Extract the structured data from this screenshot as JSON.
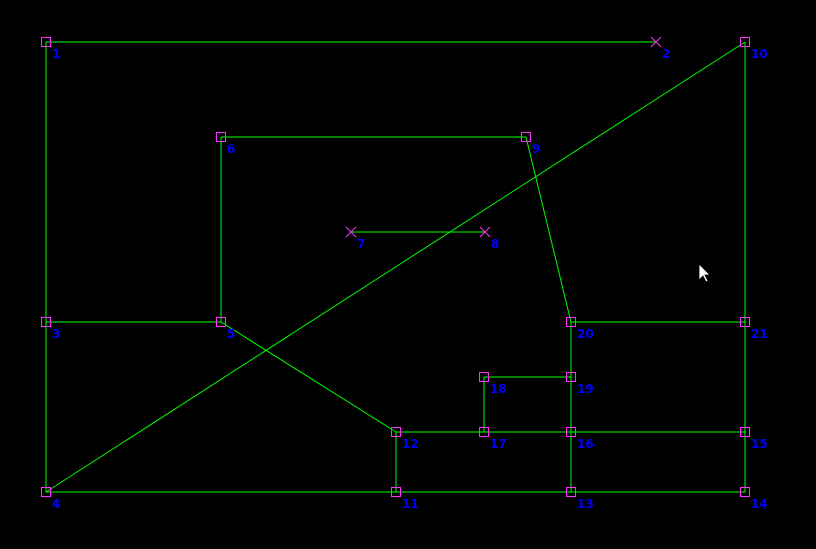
{
  "colors": {
    "background": "#000000",
    "edge": "#00ff00",
    "node_marker": "#ff33ff",
    "label": "#0000ff",
    "cursor": "#ffffff"
  },
  "nodes": [
    {
      "id": "1",
      "label": "1",
      "marker": "square"
    },
    {
      "id": "2",
      "label": "2",
      "marker": "cross"
    },
    {
      "id": "3",
      "label": "3",
      "marker": "square"
    },
    {
      "id": "4",
      "label": "4",
      "marker": "square"
    },
    {
      "id": "5",
      "label": "5",
      "marker": "square"
    },
    {
      "id": "6",
      "label": "6",
      "marker": "square"
    },
    {
      "id": "7",
      "label": "7",
      "marker": "cross"
    },
    {
      "id": "8",
      "label": "8",
      "marker": "cross"
    },
    {
      "id": "9",
      "label": "9",
      "marker": "square"
    },
    {
      "id": "10",
      "label": "10",
      "marker": "square"
    },
    {
      "id": "11",
      "label": "11",
      "marker": "square"
    },
    {
      "id": "12",
      "label": "12",
      "marker": "square"
    },
    {
      "id": "13",
      "label": "13",
      "marker": "square"
    },
    {
      "id": "14",
      "label": "14",
      "marker": "square"
    },
    {
      "id": "15",
      "label": "15",
      "marker": "square"
    },
    {
      "id": "16",
      "label": "16",
      "marker": "square"
    },
    {
      "id": "17",
      "label": "17",
      "marker": "square"
    },
    {
      "id": "18",
      "label": "18",
      "marker": "square"
    },
    {
      "id": "19",
      "label": "19",
      "marker": "square"
    },
    {
      "id": "20",
      "label": "20",
      "marker": "square"
    },
    {
      "id": "21",
      "label": "21",
      "marker": "square"
    }
  ],
  "edges": [
    [
      "1",
      "2"
    ],
    [
      "1",
      "3"
    ],
    [
      "3",
      "4"
    ],
    [
      "4",
      "11"
    ],
    [
      "11",
      "13"
    ],
    [
      "13",
      "14"
    ],
    [
      "14",
      "15"
    ],
    [
      "15",
      "21"
    ],
    [
      "21",
      "10"
    ],
    [
      "4",
      "10"
    ],
    [
      "3",
      "5"
    ],
    [
      "5",
      "6"
    ],
    [
      "6",
      "9"
    ],
    [
      "9",
      "20"
    ],
    [
      "20",
      "21"
    ],
    [
      "20",
      "19"
    ],
    [
      "19",
      "16"
    ],
    [
      "16",
      "13"
    ],
    [
      "5",
      "12"
    ],
    [
      "12",
      "11"
    ],
    [
      "12",
      "17"
    ],
    [
      "17",
      "16"
    ],
    [
      "16",
      "15"
    ],
    [
      "17",
      "18"
    ],
    [
      "18",
      "19"
    ],
    [
      "7",
      "8"
    ]
  ],
  "cursor": {
    "icon": "mouse-pointer-icon"
  }
}
